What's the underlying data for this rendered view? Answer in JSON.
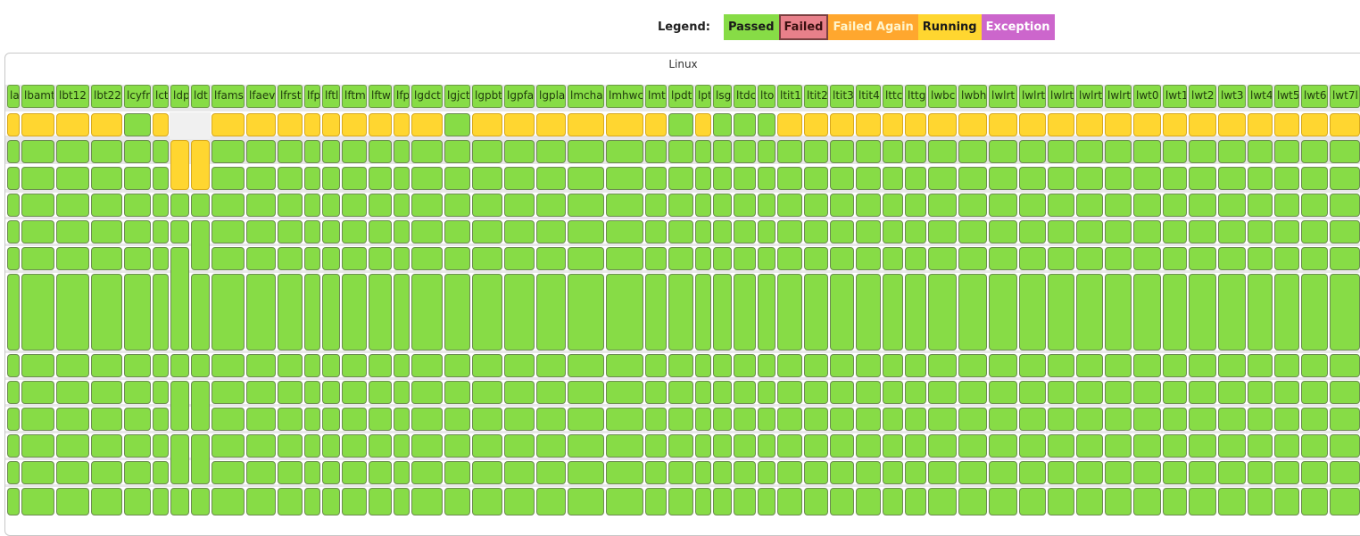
{
  "legend": {
    "title": "Legend:",
    "items": [
      {
        "key": "passed",
        "label": "Passed",
        "color": "#87dc46",
        "text": "#1a1a1a"
      },
      {
        "key": "failed",
        "label": "Failed",
        "color": "#e8808a",
        "text": "#3a1010"
      },
      {
        "key": "failed_again",
        "label": "Failed Again",
        "color": "#ffa72e",
        "text": "#fff5cc"
      },
      {
        "key": "running",
        "label": "Running",
        "color": "#ffd630",
        "text": "#1a1a1a"
      },
      {
        "key": "exception",
        "label": "Exception",
        "color": "#cc66cc",
        "text": "#ffffff"
      }
    ]
  },
  "platform": "Linux",
  "colors": {
    "P": "#87dc46",
    "R": "#ffd630",
    "band": "#e8e8e8"
  },
  "builders": [
    {
      "label": "la",
      "status": "R"
    },
    {
      "label": "lbamt",
      "status": "R"
    },
    {
      "label": "lbt12",
      "status": "R"
    },
    {
      "label": "lbt22",
      "status": "R"
    },
    {
      "label": "lcyfr",
      "status": "P"
    },
    {
      "label": "lct",
      "status": "R"
    },
    {
      "label": "ldp",
      "status": ""
    },
    {
      "label": "ldt",
      "status": ""
    },
    {
      "label": "lfams",
      "status": "R"
    },
    {
      "label": "lfaev",
      "status": "R"
    },
    {
      "label": "lfrst",
      "status": "R"
    },
    {
      "label": "lfp",
      "status": "R"
    },
    {
      "label": "lftl",
      "status": "R"
    },
    {
      "label": "lftm",
      "status": "R"
    },
    {
      "label": "lftw",
      "status": "R"
    },
    {
      "label": "lfp",
      "status": "R"
    },
    {
      "label": "lgdct",
      "status": "R"
    },
    {
      "label": "lgjct",
      "status": "P"
    },
    {
      "label": "lgpbt",
      "status": "R"
    },
    {
      "label": "lgpfa",
      "status": "R"
    },
    {
      "label": "lgpla",
      "status": "R"
    },
    {
      "label": "lmcha",
      "status": "R"
    },
    {
      "label": "lmhwc",
      "status": "R"
    },
    {
      "label": "lmt",
      "status": "R"
    },
    {
      "label": "lpdt",
      "status": "P"
    },
    {
      "label": "lpt",
      "status": "R"
    },
    {
      "label": "lsg",
      "status": "P"
    },
    {
      "label": "ltdc",
      "status": "P"
    },
    {
      "label": "lto",
      "status": "P"
    },
    {
      "label": "ltit1",
      "status": "R"
    },
    {
      "label": "ltit2",
      "status": "R"
    },
    {
      "label": "ltit3",
      "status": "R"
    },
    {
      "label": "ltit4",
      "status": "R"
    },
    {
      "label": "lttc",
      "status": "R"
    },
    {
      "label": "lttg",
      "status": "R"
    },
    {
      "label": "lwbc",
      "status": "R"
    },
    {
      "label": "lwbh",
      "status": "R"
    },
    {
      "label": "lwlrt",
      "status": "R"
    },
    {
      "label": "lwlrt",
      "status": "R"
    },
    {
      "label": "lwlrt",
      "status": "R"
    },
    {
      "label": "lwlrt",
      "status": "R"
    },
    {
      "label": "lwlrt",
      "status": "R"
    },
    {
      "label": "lwt0",
      "status": "R"
    },
    {
      "label": "lwt1",
      "status": "R"
    },
    {
      "label": "lwt2",
      "status": "R"
    },
    {
      "label": "lwt3",
      "status": "R"
    },
    {
      "label": "lwt4",
      "status": "R"
    },
    {
      "label": "lwt5",
      "status": "R"
    },
    {
      "label": "lwt6",
      "status": "R"
    },
    {
      "label": "lwt7l",
      "status": "R"
    }
  ]
}
